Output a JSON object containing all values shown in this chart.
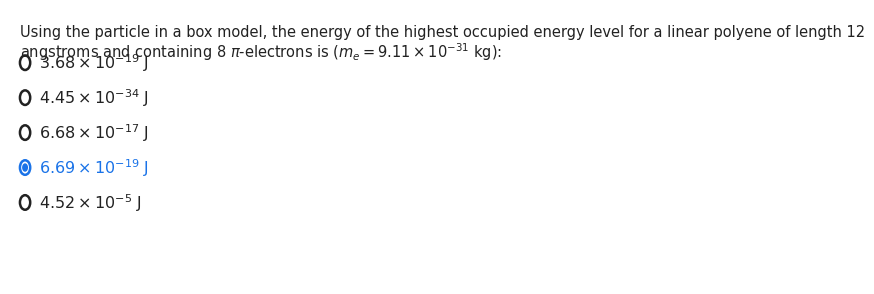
{
  "q_line1": "Using the particle in a box model, the energy of the highest occupied energy level for a linear polyene of length 12",
  "q_line2_pre": "angstroms and containing 8 $\\pi$-electrons is ($m_e = 9.11 \\times 10^{-31}$ kg):",
  "options": [
    {
      "mathtext": "$3.68 \\times 10^{-19}$ J",
      "selected": false
    },
    {
      "mathtext": "$4.45 \\times 10^{-34}$ J",
      "selected": false
    },
    {
      "mathtext": "$6.68 \\times 10^{-17}$ J",
      "selected": false
    },
    {
      "mathtext": "$6.69 \\times 10^{-19}$ J",
      "selected": true
    },
    {
      "mathtext": "$4.52 \\times 10^{-5}$ J",
      "selected": false
    }
  ],
  "text_color": "#222222",
  "selected_color": "#1a73e8",
  "background_color": "#ffffff",
  "q_fontsize": 10.5,
  "opt_fontsize": 11.5
}
